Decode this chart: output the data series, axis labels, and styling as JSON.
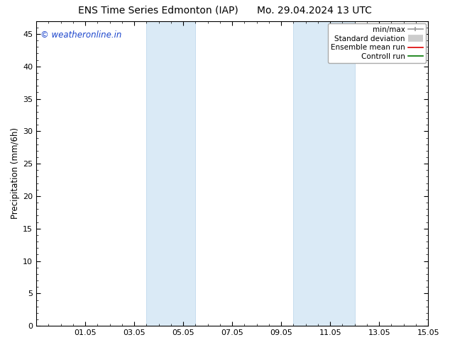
{
  "title_left": "ENS Time Series Edmonton (IAP)",
  "title_right": "Mo. 29.04.2024 13 UTC",
  "ylabel": "Precipitation (mm/6h)",
  "watermark": "© weatheronline.in",
  "watermark_color": "#1a44cc",
  "xlim": [
    0,
    16
  ],
  "ylim": [
    0,
    47
  ],
  "yticks": [
    0,
    5,
    10,
    15,
    20,
    25,
    30,
    35,
    40,
    45
  ],
  "xtick_labels": [
    "01.05",
    "03.05",
    "05.05",
    "07.05",
    "09.05",
    "11.05",
    "13.05",
    "15.05"
  ],
  "xtick_positions": [
    2,
    4,
    6,
    8,
    10,
    12,
    14,
    16
  ],
  "shaded_regions": [
    {
      "xstart": 4.5,
      "xend": 6.5
    },
    {
      "xstart": 10.5,
      "xend": 13.0
    }
  ],
  "shaded_color": "#daeaf6",
  "shaded_edge_color": "#b8d4eb",
  "background_color": "#ffffff",
  "legend_labels": [
    "min/max",
    "Standard deviation",
    "Ensemble mean run",
    "Controll run"
  ],
  "legend_colors": [
    "#999999",
    "#cccccc",
    "#dd0000",
    "#007700"
  ],
  "legend_styles": [
    "minmax",
    "thick",
    "line",
    "line"
  ],
  "font_size_title": 10,
  "font_size_legend": 7.5,
  "font_size_ticks": 8,
  "font_size_ylabel": 8.5,
  "font_size_watermark": 8.5,
  "tick_color": "#000000",
  "spine_color": "#000000",
  "no_grid": true
}
